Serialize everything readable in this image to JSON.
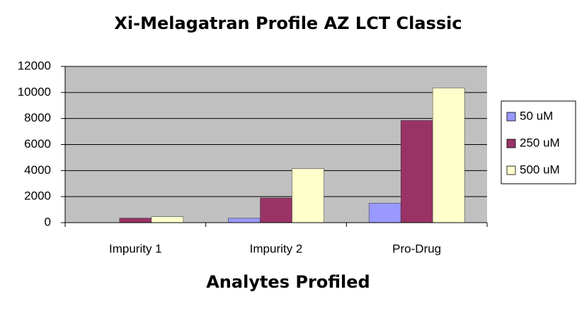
{
  "chart_data": {
    "type": "bar",
    "title": "Xi-Melagatran Profile AZ LCT Classic",
    "x_label": "Analytes Profiled",
    "categories": [
      "Impurity 1",
      "Impurity 2",
      "Pro-Drug"
    ],
    "series": [
      {
        "name": "50 uM",
        "color": "#9999ff",
        "values": [
          0,
          350,
          1500
        ]
      },
      {
        "name": "250 uM",
        "color": "#993366",
        "values": [
          350,
          1900,
          7850
        ]
      },
      {
        "name": "500 uM",
        "color": "#ffffcc",
        "values": [
          450,
          4150,
          10350
        ]
      }
    ],
    "ylim": [
      0,
      12000
    ],
    "yticks": [
      0,
      2000,
      4000,
      6000,
      8000,
      10000,
      12000
    ],
    "grid": true,
    "legend": "right"
  }
}
